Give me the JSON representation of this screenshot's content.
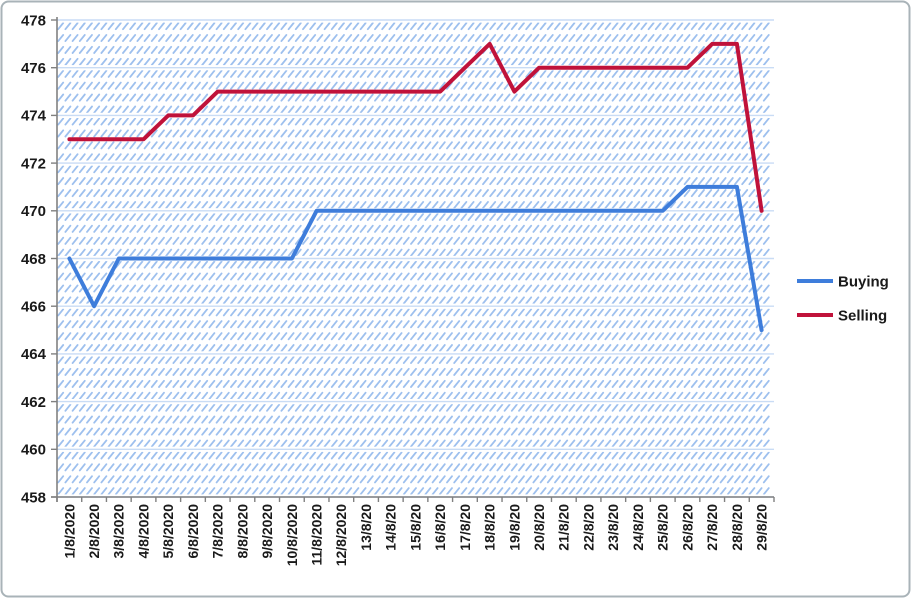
{
  "colors": {
    "buying": "#3E7DDB",
    "selling": "#C0123A",
    "hatch": "#9EC0EE",
    "gridline": "#C9DCF5",
    "gridline_band": "#FFFFFF",
    "axis": "#808080",
    "text": "#1A1A1A",
    "frame_border": "#A9B3B8",
    "plot_background": "#FFFFFF"
  },
  "chart_data": {
    "type": "line",
    "title": "",
    "xlabel": "",
    "ylabel": "",
    "categories": [
      "1/8/2020",
      "2/8/2020",
      "3/8/2020",
      "4/8/2020",
      "5/8/2020",
      "6/8/2020",
      "7/8/2020",
      "8/8/2020",
      "9/8/2020",
      "10/8/2020",
      "11/8/2020",
      "12/8/2020",
      "13/8/20",
      "14/8/20",
      "15/8/20",
      "16/8/20",
      "17/8/20",
      "18/8/20",
      "19/8/20",
      "20/8/20",
      "21/8/20",
      "22/8/20",
      "23/8/20",
      "24/8/20",
      "25/8/20",
      "26/8/20",
      "27/8/20",
      "28/8/20",
      "29/8/20"
    ],
    "series": [
      {
        "name": "Buying",
        "color": "#3E7DDB",
        "values": [
          468,
          466,
          468,
          468,
          468,
          468,
          468,
          468,
          468,
          468,
          470,
          470,
          470,
          470,
          470,
          470,
          470,
          470,
          470,
          470,
          470,
          470,
          470,
          470,
          470,
          471,
          471,
          471,
          465
        ]
      },
      {
        "name": "Selling",
        "color": "#C0123A",
        "values": [
          473,
          473,
          473,
          473,
          474,
          474,
          475,
          475,
          475,
          475,
          475,
          475,
          475,
          475,
          475,
          475,
          476,
          477,
          475,
          476,
          476,
          476,
          476,
          476,
          476,
          476,
          477,
          477,
          470
        ]
      }
    ],
    "ylim": [
      458,
      478
    ],
    "ytick_step": 2,
    "yticks": [
      458,
      460,
      462,
      464,
      466,
      468,
      470,
      472,
      474,
      476,
      478
    ],
    "grid": "horizontal-major",
    "legend_position": "right",
    "legend_labels": [
      "Buying",
      "Selling"
    ],
    "plot_pattern": "light-blue-diagonal-hatch"
  }
}
